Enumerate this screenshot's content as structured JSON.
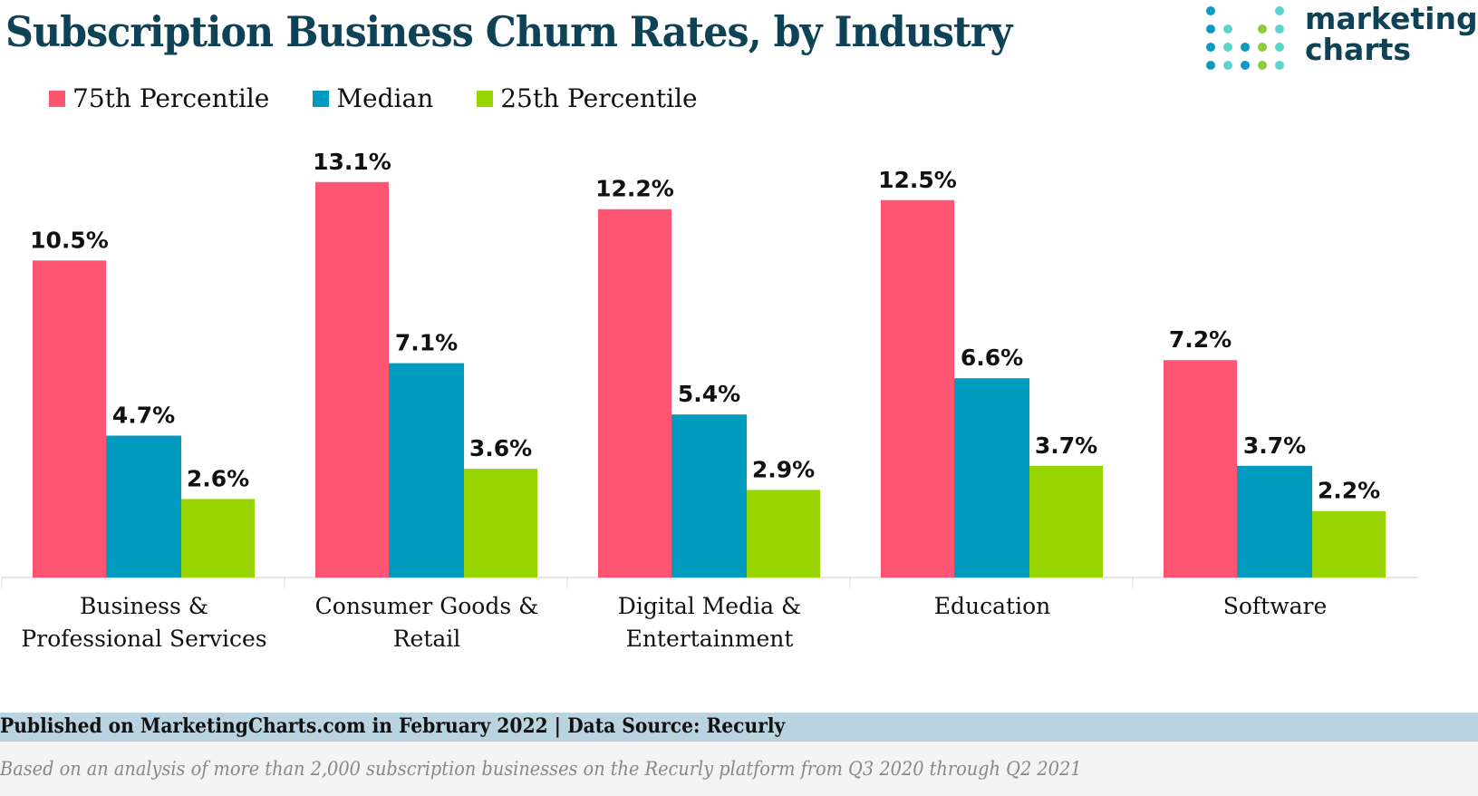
{
  "title": "Subscription Business Churn Rates, by Industry",
  "logo": {
    "line1": "marketing",
    "line2": "charts"
  },
  "colors": {
    "p75": "#fe5572",
    "median": "#009bbf",
    "p25": "#98d500",
    "title": "#0e4256",
    "axis": "#dddddd"
  },
  "footer": {
    "published": "Published on MarketingCharts.com in February 2022 | Data Source: Recurly",
    "note": "Based on an analysis of more than 2,000 subscription businesses on the Recurly platform from Q3 2020 through Q2 2021"
  },
  "chart_data": {
    "type": "bar",
    "title": "Subscription Business Churn Rates, by Industry",
    "xlabel": "",
    "ylabel": "",
    "ylim": [
      0,
      14
    ],
    "grid": false,
    "legend_position": "top-left",
    "categories": [
      [
        "Business &",
        "Professional Services"
      ],
      [
        "Consumer Goods &",
        "Retail"
      ],
      [
        "Digital Media &",
        "Entertainment"
      ],
      [
        "Education"
      ],
      [
        "Software"
      ]
    ],
    "series": [
      {
        "name": "75th Percentile",
        "color": "#fe5572",
        "values": [
          10.5,
          13.1,
          12.2,
          12.5,
          7.2
        ],
        "labels": [
          "10.5%",
          "13.1%",
          "12.2%",
          "12.5%",
          "7.2%"
        ]
      },
      {
        "name": "Median",
        "color": "#009bbf",
        "values": [
          4.7,
          7.1,
          5.4,
          6.6,
          3.7
        ],
        "labels": [
          "4.7%",
          "7.1%",
          "5.4%",
          "6.6%",
          "3.7%"
        ]
      },
      {
        "name": "25th Percentile",
        "color": "#98d500",
        "values": [
          2.6,
          3.6,
          2.9,
          3.7,
          2.2
        ],
        "labels": [
          "2.6%",
          "3.6%",
          "2.9%",
          "3.7%",
          "2.2%"
        ]
      }
    ]
  }
}
